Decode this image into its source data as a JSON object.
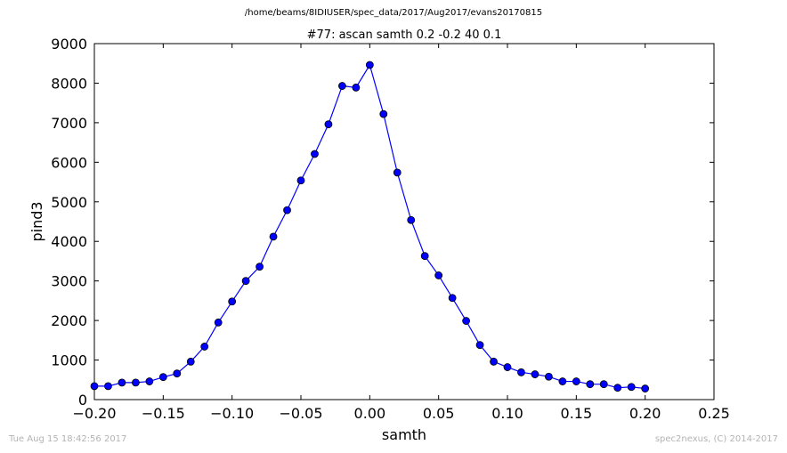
{
  "figure": {
    "suptitle": "/home/beams/8IDIUSER/spec_data/2017/Aug2017/evans20170815",
    "timestamp": "Tue Aug 15 18:42:56 2017",
    "credit": "spec2nexus, (C) 2014-2017"
  },
  "chart_data": {
    "type": "line",
    "title": "#77: ascan  samth 0.2 -0.2  40 0.1",
    "xlabel": "samth",
    "ylabel": "pind3",
    "xlim": [
      -0.2,
      0.25
    ],
    "ylim": [
      0,
      9000
    ],
    "xticks": [
      -0.2,
      -0.15,
      -0.1,
      -0.05,
      0.0,
      0.05,
      0.1,
      0.15,
      0.2,
      0.25
    ],
    "xtick_labels": [
      "−0.20",
      "−0.15",
      "−0.10",
      "−0.05",
      "0.00",
      "0.05",
      "0.10",
      "0.15",
      "0.20",
      "0.25"
    ],
    "yticks": [
      0,
      1000,
      2000,
      3000,
      4000,
      5000,
      6000,
      7000,
      8000,
      9000
    ],
    "ytick_labels": [
      "0",
      "1000",
      "2000",
      "3000",
      "4000",
      "5000",
      "6000",
      "7000",
      "8000",
      "9000"
    ],
    "grid": false,
    "color": "#0000ff",
    "marker": "circle",
    "series": [
      {
        "x": [
          -0.2,
          -0.19,
          -0.18,
          -0.17,
          -0.16,
          -0.15,
          -0.14,
          -0.13,
          -0.12,
          -0.11,
          -0.1,
          -0.09,
          -0.08,
          -0.07,
          -0.06,
          -0.05,
          -0.04,
          -0.03,
          -0.02,
          -0.01,
          0.0,
          0.01,
          0.02,
          0.03,
          0.04,
          0.05,
          0.06,
          0.07,
          0.08,
          0.09,
          0.1,
          0.11,
          0.12,
          0.13,
          0.14,
          0.15,
          0.16,
          0.17,
          0.18,
          0.19,
          0.2
        ],
        "y": [
          340,
          340,
          430,
          430,
          460,
          570,
          660,
          960,
          1340,
          1950,
          2480,
          3000,
          3360,
          4120,
          4790,
          5540,
          6210,
          6960,
          7930,
          7890,
          8460,
          7220,
          5740,
          4540,
          3630,
          3140,
          2570,
          1990,
          1380,
          960,
          820,
          690,
          640,
          580,
          460,
          460,
          390,
          390,
          300,
          320,
          280
        ]
      }
    ]
  }
}
